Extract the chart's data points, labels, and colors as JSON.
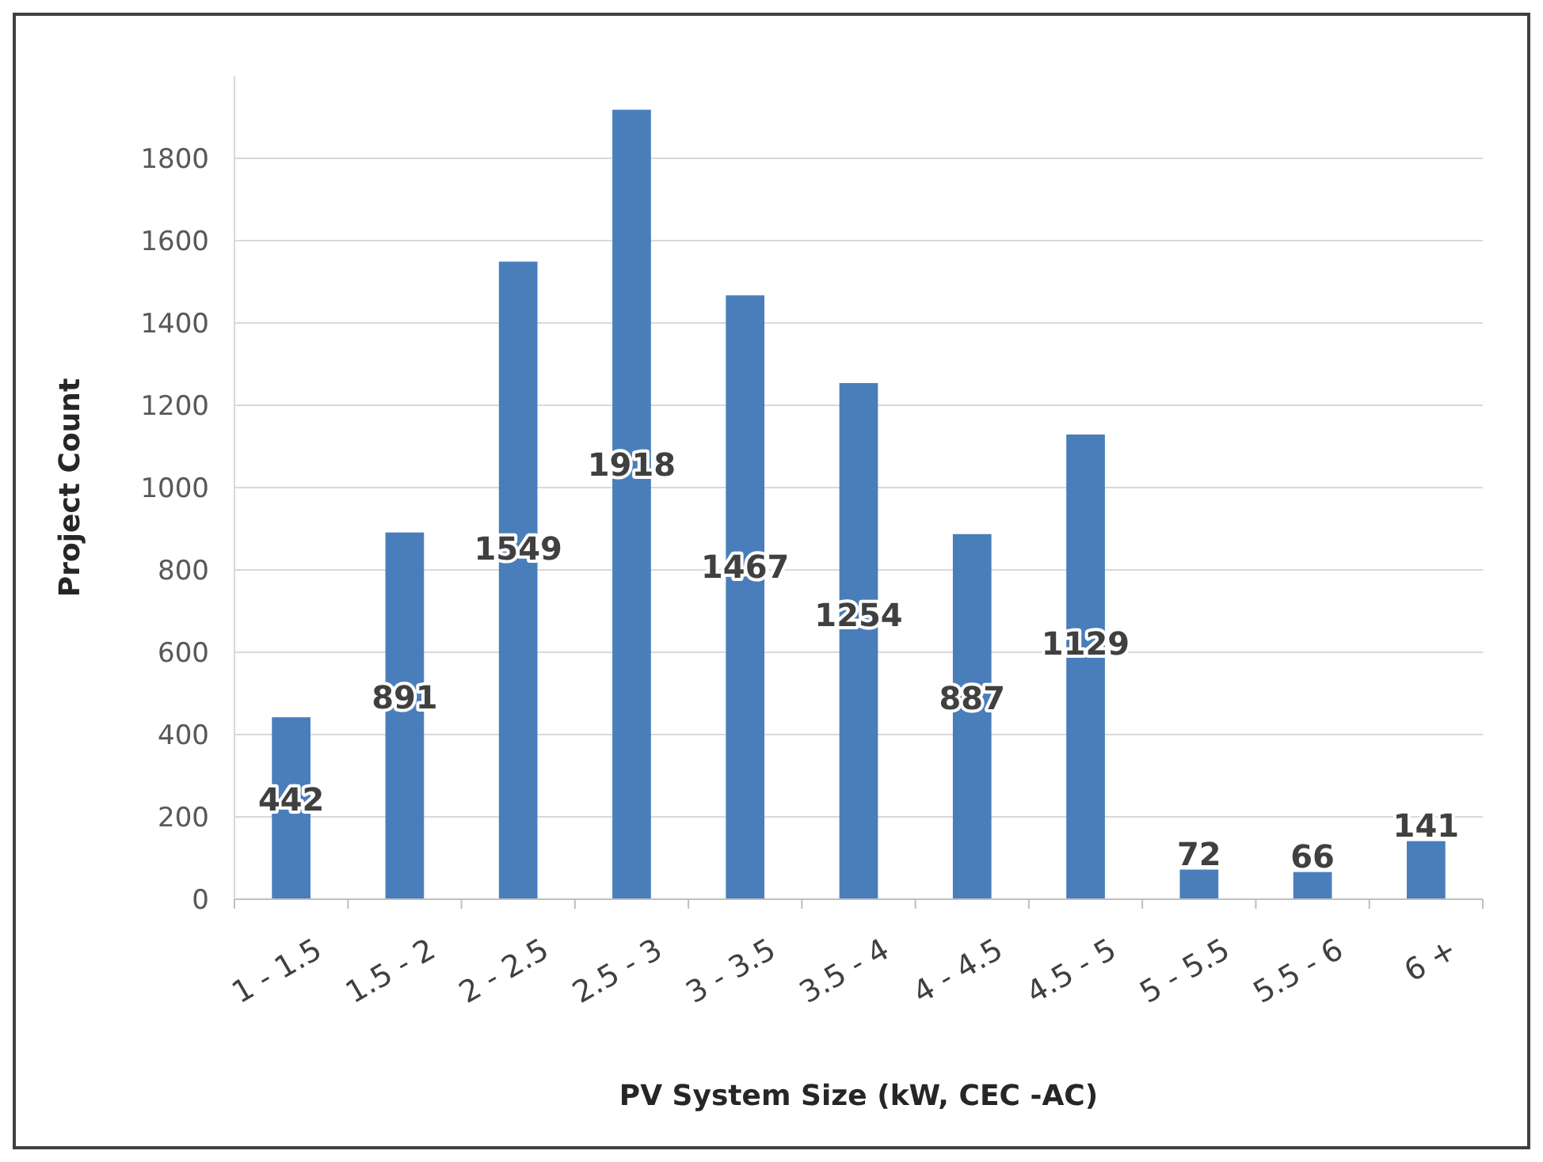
{
  "chart_data": {
    "type": "bar",
    "xlabel": "PV System Size (kW, CEC -AC)",
    "ylabel": "Project Count",
    "categories": [
      "1 - 1.5",
      "1.5 - 2",
      "2 - 2.5",
      "2.5 - 3",
      "3 - 3.5",
      "3.5 - 4",
      "4 - 4.5",
      "4.5 - 5",
      "5 - 5.5",
      "5.5 - 6",
      "6 +"
    ],
    "values": [
      442,
      891,
      1549,
      1918,
      1467,
      1254,
      887,
      1129,
      72,
      66,
      141
    ],
    "color": "#4a7ebb",
    "ylim": [
      0,
      2000
    ],
    "yticks": [
      0,
      200,
      400,
      600,
      800,
      1000,
      1200,
      1400,
      1600,
      1800
    ],
    "grid": "y",
    "data_labels": true
  }
}
